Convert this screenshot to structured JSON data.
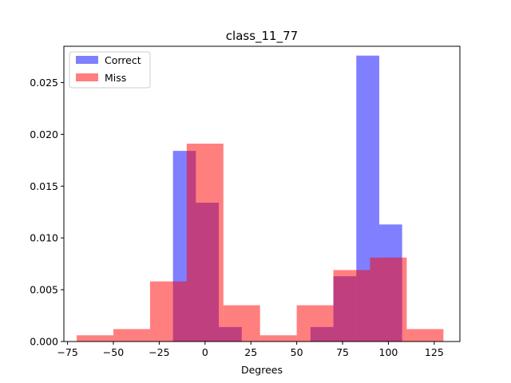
{
  "chart_data": {
    "type": "histogram",
    "title": "class_11_77",
    "xlabel": "Degrees",
    "ylabel": "",
    "xlim": [
      -77,
      139
    ],
    "ylim": [
      0,
      0.0285
    ],
    "xticks": [
      -75,
      -50,
      -25,
      0,
      25,
      50,
      75,
      100,
      125
    ],
    "xtick_labels": [
      "−75",
      "−50",
      "−25",
      "0",
      "25",
      "50",
      "75",
      "100",
      "125"
    ],
    "yticks": [
      0.0,
      0.005,
      0.01,
      0.015,
      0.02,
      0.025
    ],
    "ytick_labels": [
      "0.000",
      "0.005",
      "0.010",
      "0.015",
      "0.020",
      "0.025"
    ],
    "legend_position": "upper-left",
    "series": [
      {
        "name": "Correct",
        "color": "#0000ff",
        "alpha": 0.5,
        "bin_edges": [
          -17.5,
          -5.0,
          7.5,
          20.0,
          32.5,
          45.0,
          57.5,
          70.0,
          82.5,
          95.0,
          107.5
        ],
        "values": [
          0.0184,
          0.0134,
          0.0014,
          0.0,
          0.0,
          0.0,
          0.0014,
          0.0063,
          0.0276,
          0.0113
        ]
      },
      {
        "name": "Miss",
        "color": "#ff0000",
        "alpha": 0.5,
        "bin_edges": [
          -70.0,
          -50.0,
          -30.0,
          -10.0,
          10.0,
          30.0,
          50.0,
          70.0,
          90.0,
          110.0,
          130.0
        ],
        "values": [
          0.0006,
          0.0012,
          0.0058,
          0.0191,
          0.0035,
          0.0006,
          0.0035,
          0.0069,
          0.0081,
          0.0012
        ]
      }
    ]
  }
}
